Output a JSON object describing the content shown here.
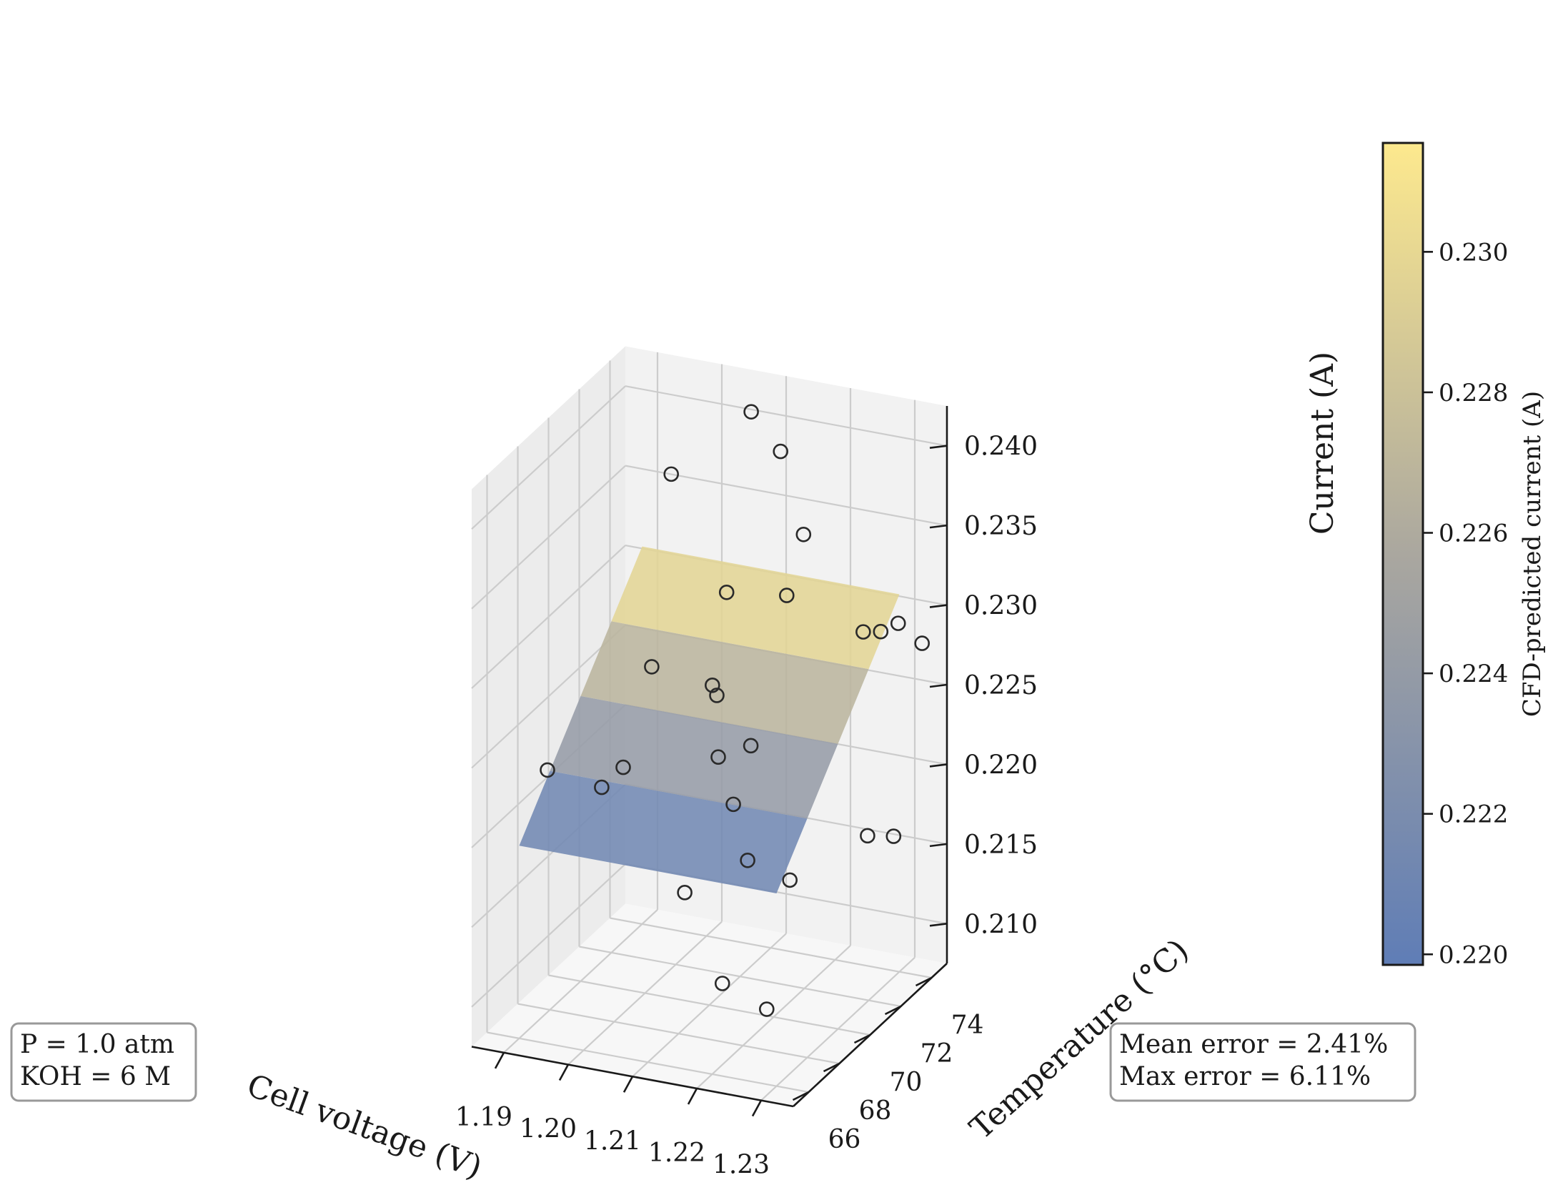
{
  "chart_data": {
    "type": "surface3d",
    "title": "",
    "xlabel": "Cell voltage (V)",
    "ylabel": "Temperature (°C)",
    "zlabel": "Current (A)",
    "xlim": [
      1.185,
      1.235
    ],
    "ylim": [
      65,
      75
    ],
    "zlim": [
      0.2075,
      0.2425
    ],
    "xticks": [
      "1.19",
      "1.20",
      "1.21",
      "1.22",
      "1.23"
    ],
    "yticks": [
      "66",
      "68",
      "70",
      "72",
      "74"
    ],
    "zticks": [
      "0.210",
      "0.215",
      "0.220",
      "0.225",
      "0.230",
      "0.235",
      "0.240"
    ],
    "surface": {
      "name": "CFD-predicted current (A)",
      "corners": [
        {
          "x": 1.19,
          "y": 66,
          "z": 0.2196
        },
        {
          "x": 1.23,
          "y": 66,
          "z": 0.2196
        },
        {
          "x": 1.19,
          "y": 74,
          "z": 0.2312
        },
        {
          "x": 1.23,
          "y": 74,
          "z": 0.2312
        }
      ]
    },
    "points": [
      {
        "x": 1.192,
        "y": 67.0,
        "z": 0.2236
      },
      {
        "x": 1.199,
        "y": 67.6,
        "z": 0.2225
      },
      {
        "x": 1.21,
        "y": 68.4,
        "z": 0.216
      },
      {
        "x": 1.202,
        "y": 69.6,
        "z": 0.2285
      },
      {
        "x": 1.228,
        "y": 66.2,
        "z": 0.212
      },
      {
        "x": 1.218,
        "y": 67.5,
        "z": 0.2117
      },
      {
        "x": 1.223,
        "y": 69.8,
        "z": 0.2165
      },
      {
        "x": 1.215,
        "y": 70.4,
        "z": 0.2166
      },
      {
        "x": 1.209,
        "y": 71.0,
        "z": 0.2221
      },
      {
        "x": 1.208,
        "y": 72.4,
        "z": 0.2178
      },
      {
        "x": 1.231,
        "y": 73.2,
        "z": 0.2168
      },
      {
        "x": 1.226,
        "y": 73.6,
        "z": 0.2161
      },
      {
        "x": 1.204,
        "y": 73.0,
        "z": 0.2238
      },
      {
        "x": 1.195,
        "y": 73.8,
        "z": 0.2363
      },
      {
        "x": 1.212,
        "y": 73.8,
        "z": 0.239
      },
      {
        "x": 1.217,
        "y": 73.2,
        "z": 0.2347
      },
      {
        "x": 1.212,
        "y": 74.2,
        "z": 0.2296
      },
      {
        "x": 1.206,
        "y": 72.8,
        "z": 0.2306
      },
      {
        "x": 1.206,
        "y": 74.4,
        "z": 0.2405
      },
      {
        "x": 1.227,
        "y": 72.9,
        "z": 0.2296
      },
      {
        "x": 1.229,
        "y": 73.2,
        "z": 0.2295
      },
      {
        "x": 1.231,
        "y": 73.5,
        "z": 0.2299
      },
      {
        "x": 1.234,
        "y": 73.8,
        "z": 0.2286
      },
      {
        "x": 1.21,
        "y": 70.2,
        "z": 0.2274
      },
      {
        "x": 1.199,
        "y": 69.0,
        "z": 0.2225
      },
      {
        "x": 1.2112,
        "y": 72.2,
        "z": 0.2219
      }
    ],
    "colorbar": {
      "label": "CFD-predicted current (A)",
      "range": [
        0.21985,
        0.23155
      ],
      "ticks": [
        "0.220",
        "0.222",
        "0.224",
        "0.226",
        "0.228",
        "0.230"
      ],
      "colors": [
        "#5f7db6",
        "#aaa79f",
        "#fde98e"
      ]
    },
    "annotations": {
      "left": [
        "P = 1.0 atm",
        "KOH = 6 M"
      ],
      "right": [
        "Mean error = 2.41%",
        "Max error = 6.11%"
      ]
    }
  }
}
